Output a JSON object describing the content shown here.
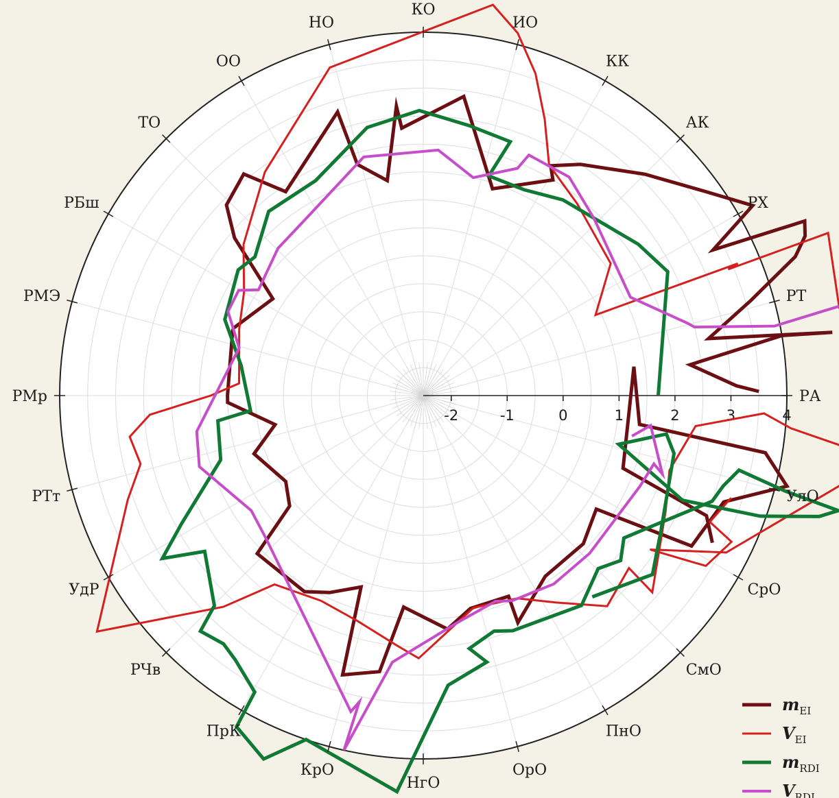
{
  "chart_data": {
    "type": "radar",
    "r_range": [
      -2.5,
      4
    ],
    "r_ticks": [
      -2,
      -1,
      0,
      1,
      2,
      3,
      4
    ],
    "start_angle_deg": 0,
    "direction": "counterclockwise",
    "grid": true,
    "legend_position": "bottom-right",
    "categories": [
      "РА",
      "РТ",
      "РХ",
      "АК",
      "КК",
      "ИО",
      "КО",
      "НО",
      "ОО",
      "ТО",
      "РБш",
      "РМЭ",
      "РМр",
      "РТт",
      "УдР",
      "РЧв",
      "ПрК",
      "КрО",
      "НгО",
      "ОрО",
      "ПнО",
      "СмО",
      "СрО",
      "УлО"
    ],
    "series": [
      {
        "name": "m",
        "name_sub": "EI",
        "color": "#6b0f12",
        "stroke_width": 5,
        "points": [
          [
            3.5,
            0.7
          ],
          [
            3.1,
            1.8
          ],
          [
            2.3,
            6.6
          ],
          [
            4.0,
            9.5
          ],
          [
            4.9,
            8.8
          ],
          [
            2.7,
            11.3
          ],
          [
            3.6,
            16.2
          ],
          [
            4.6,
            20.5
          ],
          [
            4.9,
            22.7
          ],
          [
            5.0,
            24.6
          ],
          [
            3.3,
            26.7
          ],
          [
            4.3,
            30.0
          ],
          [
            3.7,
            36.2
          ],
          [
            3.1,
            45.0
          ],
          [
            2.5,
            55.8
          ],
          [
            2.2,
            61.0
          ],
          [
            2.0,
            59.0
          ],
          [
            1.4,
            71.5
          ],
          [
            2.9,
            82.3
          ],
          [
            2.3,
            94.6
          ],
          [
            2.7,
            95.3
          ],
          [
            1.4,
            99.5
          ],
          [
            1.8,
            105.9
          ],
          [
            2.8,
            106.8
          ],
          [
            1.9,
            124.0
          ],
          [
            2.6,
            129.0
          ],
          [
            2.4,
            135.9
          ],
          [
            1.9,
            140.1
          ],
          [
            0.7,
            147.2
          ],
          [
            1.1,
            160.4
          ],
          [
            1.1,
            161.2
          ],
          [
            1.0,
            180.0
          ],
          [
            1.0,
            182.0
          ],
          [
            0.2,
            191.1
          ],
          [
            0.7,
            199.0
          ],
          [
            0.4,
            212.0
          ],
          [
            0.6,
            219.6
          ],
          [
            1.6,
            223.6
          ],
          [
            1.6,
            238.8
          ],
          [
            1.4,
            244.6
          ],
          [
            1.1,
            252.0
          ],
          [
            2.7,
            253.9
          ],
          [
            2.5,
            261.0
          ],
          [
            1.3,
            264.7
          ],
          [
            1.7,
            275.9
          ],
          [
            1.4,
            282.5
          ],
          [
            1.4,
            293.0
          ],
          [
            1.9,
            292.6
          ],
          [
            1.4,
            304.0
          ],
          [
            1.4,
            317.2
          ],
          [
            1.2,
            326.7
          ],
          [
            3.0,
            330.7
          ],
          [
            3.2,
            340.5
          ],
          [
            4.2,
            346.0
          ],
          [
            3.7,
            350.5
          ],
          [
            1.4,
            352.4
          ],
          [
            1.3,
            367.8
          ],
          [
            1.3,
            340.0
          ],
          [
            3.0,
            337.0
          ],
          [
            3.3,
            333.0
          ]
        ]
      },
      {
        "name": "V",
        "name_sub": "EI",
        "color": "#d6201f",
        "stroke_width": 3,
        "points": [
          [
            5.1,
            11.8
          ],
          [
            5.3,
            21.9
          ],
          [
            3.4,
            22.5
          ],
          [
            3.6,
            22.8
          ],
          [
            0.9,
            25.1
          ],
          [
            1.6,
            35.2
          ],
          [
            1.9,
            51.3
          ],
          [
            2.2,
            61.4
          ],
          [
            2.9,
            66.3
          ],
          [
            3.6,
            70.8
          ],
          [
            4.2,
            75.4
          ],
          [
            4.6,
            79.9
          ],
          [
            3.6,
            105.9
          ],
          [
            2.4,
            125.3
          ],
          [
            1.7,
            139.9
          ],
          [
            1.2,
            150.0
          ],
          [
            1.0,
            160.1
          ],
          [
            0.8,
            176.2
          ],
          [
            1.3,
            180.0
          ],
          [
            2.4,
            184.0
          ],
          [
            2.8,
            188.0
          ],
          [
            2.7,
            193.6
          ],
          [
            3.1,
            199.4
          ],
          [
            4.7,
            215.9
          ],
          [
            2.7,
            226.6
          ],
          [
            1.8,
            231.8
          ],
          [
            1.6,
            243.5
          ],
          [
            1.7,
            253.7
          ],
          [
            2.0,
            264.1
          ],
          [
            2.2,
            269.0
          ],
          [
            1.4,
            283.3
          ],
          [
            1.5,
            294.9
          ],
          [
            1.9,
            302.7
          ],
          [
            2.5,
            311.1
          ],
          [
            2.3,
            320.0
          ],
          [
            2.9,
            319.3
          ],
          [
            2.3,
            334.5
          ],
          [
            2.1,
            343.1
          ],
          [
            2.4,
            353.6
          ],
          [
            3.6,
            357.0
          ],
          [
            4.1,
            354.9
          ],
          [
            5.8,
            352.0
          ],
          [
            3.6,
            332.6
          ],
          [
            2.4,
            325.8
          ],
          [
            3.4,
            328.9
          ],
          [
            3.6,
            334.6
          ],
          [
            3.1,
            336.2
          ],
          [
            3.3,
            341.6
          ]
        ]
      },
      {
        "name": "m",
        "name_sub": "RDI",
        "color": "#107a34",
        "stroke_width": 5,
        "points": [
          [
            1.7,
            0.0
          ],
          [
            2.4,
            26.9
          ],
          [
            2.2,
            35.2
          ],
          [
            1.8,
            54.5
          ],
          [
            1.6,
            63.9
          ],
          [
            1.6,
            73.4
          ],
          [
            2.3,
            71.1
          ],
          [
            2.4,
            80.4
          ],
          [
            2.6,
            90.8
          ],
          [
            2.4,
            101.8
          ],
          [
            1.8,
            116.6
          ],
          [
            1.8,
            130.0
          ],
          [
            1.4,
            140.5
          ],
          [
            1.5,
            145.8
          ],
          [
            1.3,
            159.0
          ],
          [
            0.8,
            170.6
          ],
          [
            0.6,
            185.0
          ],
          [
            1.2,
            187.0
          ],
          [
            1.3,
            197.6
          ],
          [
            2.4,
            208.0
          ],
          [
            3.0,
            212.0
          ],
          [
            2.3,
            215.5
          ],
          [
            2.8,
            225.2
          ],
          [
            3.3,
            226.6
          ],
          [
            3.2,
            231.2
          ],
          [
            3.3,
            234.6
          ],
          [
            3.6,
            240.4
          ],
          [
            4.3,
            240.6
          ],
          [
            4.6,
            246.3
          ],
          [
            4.0,
            251.2
          ],
          [
            4.6,
            266.2
          ],
          [
            2.7,
            274.9
          ],
          [
            2.4,
            283.4
          ],
          [
            2.1,
            280.3
          ],
          [
            1.9,
            286.7
          ],
          [
            2.0,
            290.8
          ],
          [
            2.2,
            307.0
          ],
          [
            1.9,
            315.3
          ],
          [
            2.1,
            320.1
          ],
          [
            1.9,
            324.6
          ],
          [
            2.2,
            330.1
          ],
          [
            3.0,
            339.9
          ],
          [
            3.1,
            343.2
          ],
          [
            3.3,
            346.7
          ],
          [
            4.2,
            345.2
          ],
          [
            5.2,
            344.5
          ],
          [
            4.9,
            343.0
          ],
          [
            3.9,
            340.3
          ],
          [
            2.5,
            338.0
          ],
          [
            1.1,
            346.0
          ],
          [
            1.9,
            351.0
          ],
          [
            2.1,
            347.0
          ],
          [
            2.4,
            330.0
          ],
          [
            2.7,
            322.0
          ],
          [
            2.2,
            310.0
          ]
        ]
      },
      {
        "name": "V",
        "name_sub": "RDI",
        "color": "#c64fc9",
        "stroke_width": 4,
        "points": [
          [
            6.1,
            12.7
          ],
          [
            3.9,
            11.2
          ],
          [
            2.5,
            14.2
          ],
          [
            2.4,
            15.3
          ],
          [
            1.6,
            25.4
          ],
          [
            1.9,
            46.1
          ],
          [
            2.2,
            56.3
          ],
          [
            2.2,
            66.3
          ],
          [
            1.9,
            67.5
          ],
          [
            1.5,
            77.1
          ],
          [
            1.9,
            86.5
          ],
          [
            1.9,
            104.0
          ],
          [
            1.3,
            123.3
          ],
          [
            1.2,
            134.6
          ],
          [
            1.0,
            147.3
          ],
          [
            1.3,
            150.3
          ],
          [
            1.3,
            156.7
          ],
          [
            0.9,
            165.5
          ],
          [
            1.6,
            189.0
          ],
          [
            1.7,
            197.6
          ],
          [
            1.2,
            213.8
          ],
          [
            1.3,
            222.3
          ],
          [
            3.3,
            257.1
          ],
          [
            3.1,
            258.2
          ],
          [
            4.0,
            257.4
          ],
          [
            2.3,
            263.4
          ],
          [
            1.6,
            278.8
          ],
          [
            1.4,
            289.3
          ],
          [
            1.5,
            293.4
          ],
          [
            1.6,
            304.7
          ],
          [
            1.6,
            316.5
          ],
          [
            1.7,
            337.3
          ],
          [
            1.8,
            343.5
          ],
          [
            2.0,
            341.8
          ],
          [
            1.6,
            352.5
          ],
          [
            1.3,
            349.0
          ]
        ]
      }
    ]
  }
}
